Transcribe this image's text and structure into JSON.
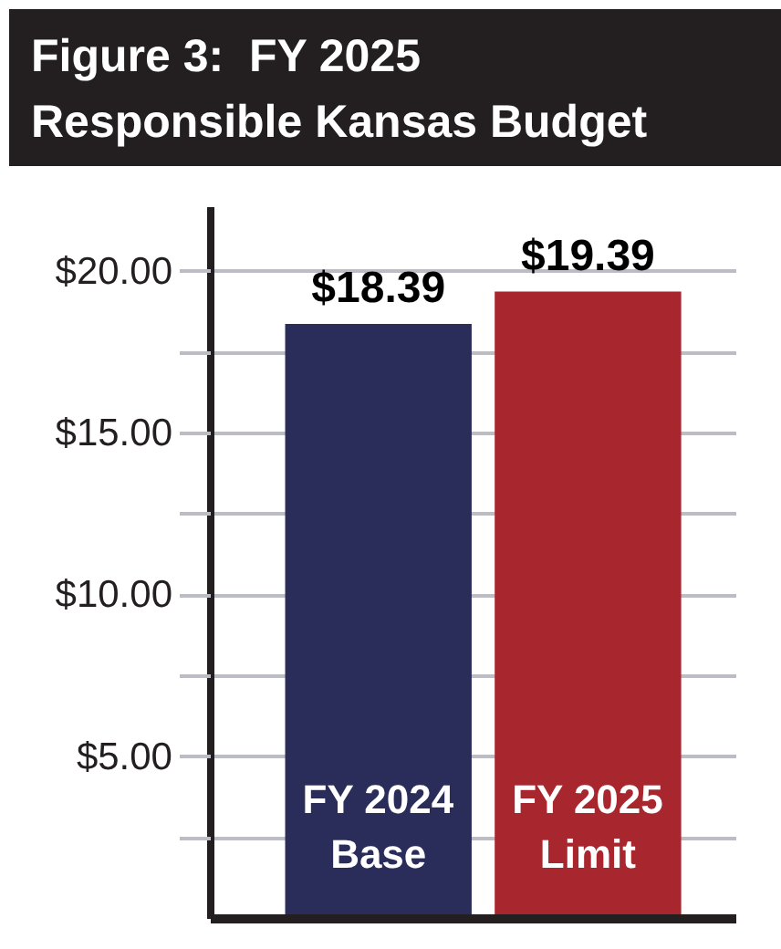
{
  "chart_data": {
    "type": "bar",
    "title": "Figure 3:  FY 2025\nResponsible Kansas Budget",
    "categories": [
      "FY 2024\nBase",
      "FY 2025\nLimit"
    ],
    "values": [
      18.39,
      19.39
    ],
    "colors": [
      "#2a2d5a",
      "#a8272e"
    ],
    "value_labels": [
      "$18.39",
      "$19.39"
    ],
    "ylim": [
      0,
      22
    ],
    "yticks": [
      {
        "value": 2.5,
        "label": null
      },
      {
        "value": 5,
        "label": "$5.00"
      },
      {
        "value": 7.5,
        "label": null
      },
      {
        "value": 10,
        "label": "$10.00"
      },
      {
        "value": 12.5,
        "label": null
      },
      {
        "value": 15,
        "label": "$15.00"
      },
      {
        "value": 17.5,
        "label": null
      },
      {
        "value": 20,
        "label": "$20.00"
      }
    ],
    "grid": "y"
  }
}
